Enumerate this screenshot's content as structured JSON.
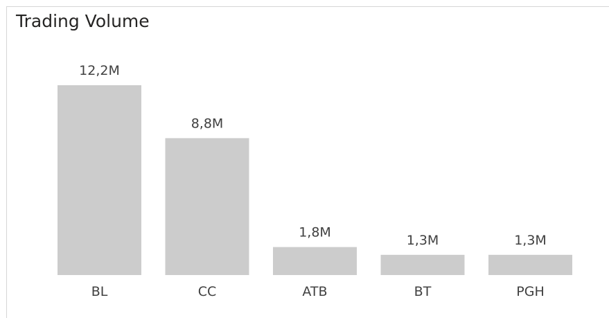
{
  "chart_data": {
    "type": "bar",
    "title": "Trading Volume",
    "categories": [
      "BL",
      "CC",
      "ATB",
      "BT",
      "PGH"
    ],
    "values": [
      12.2,
      8.8,
      1.8,
      1.3,
      1.3
    ],
    "value_labels": [
      "12,2M",
      "8,8M",
      "1,8M",
      "1,3M",
      "1,3M"
    ],
    "unit": "M",
    "xlabel": "",
    "ylabel": "",
    "ylim": [
      0,
      12.2
    ],
    "grid": false,
    "colors": {
      "bar": "#cccccc",
      "label": "#404040",
      "title": "#252423"
    }
  }
}
